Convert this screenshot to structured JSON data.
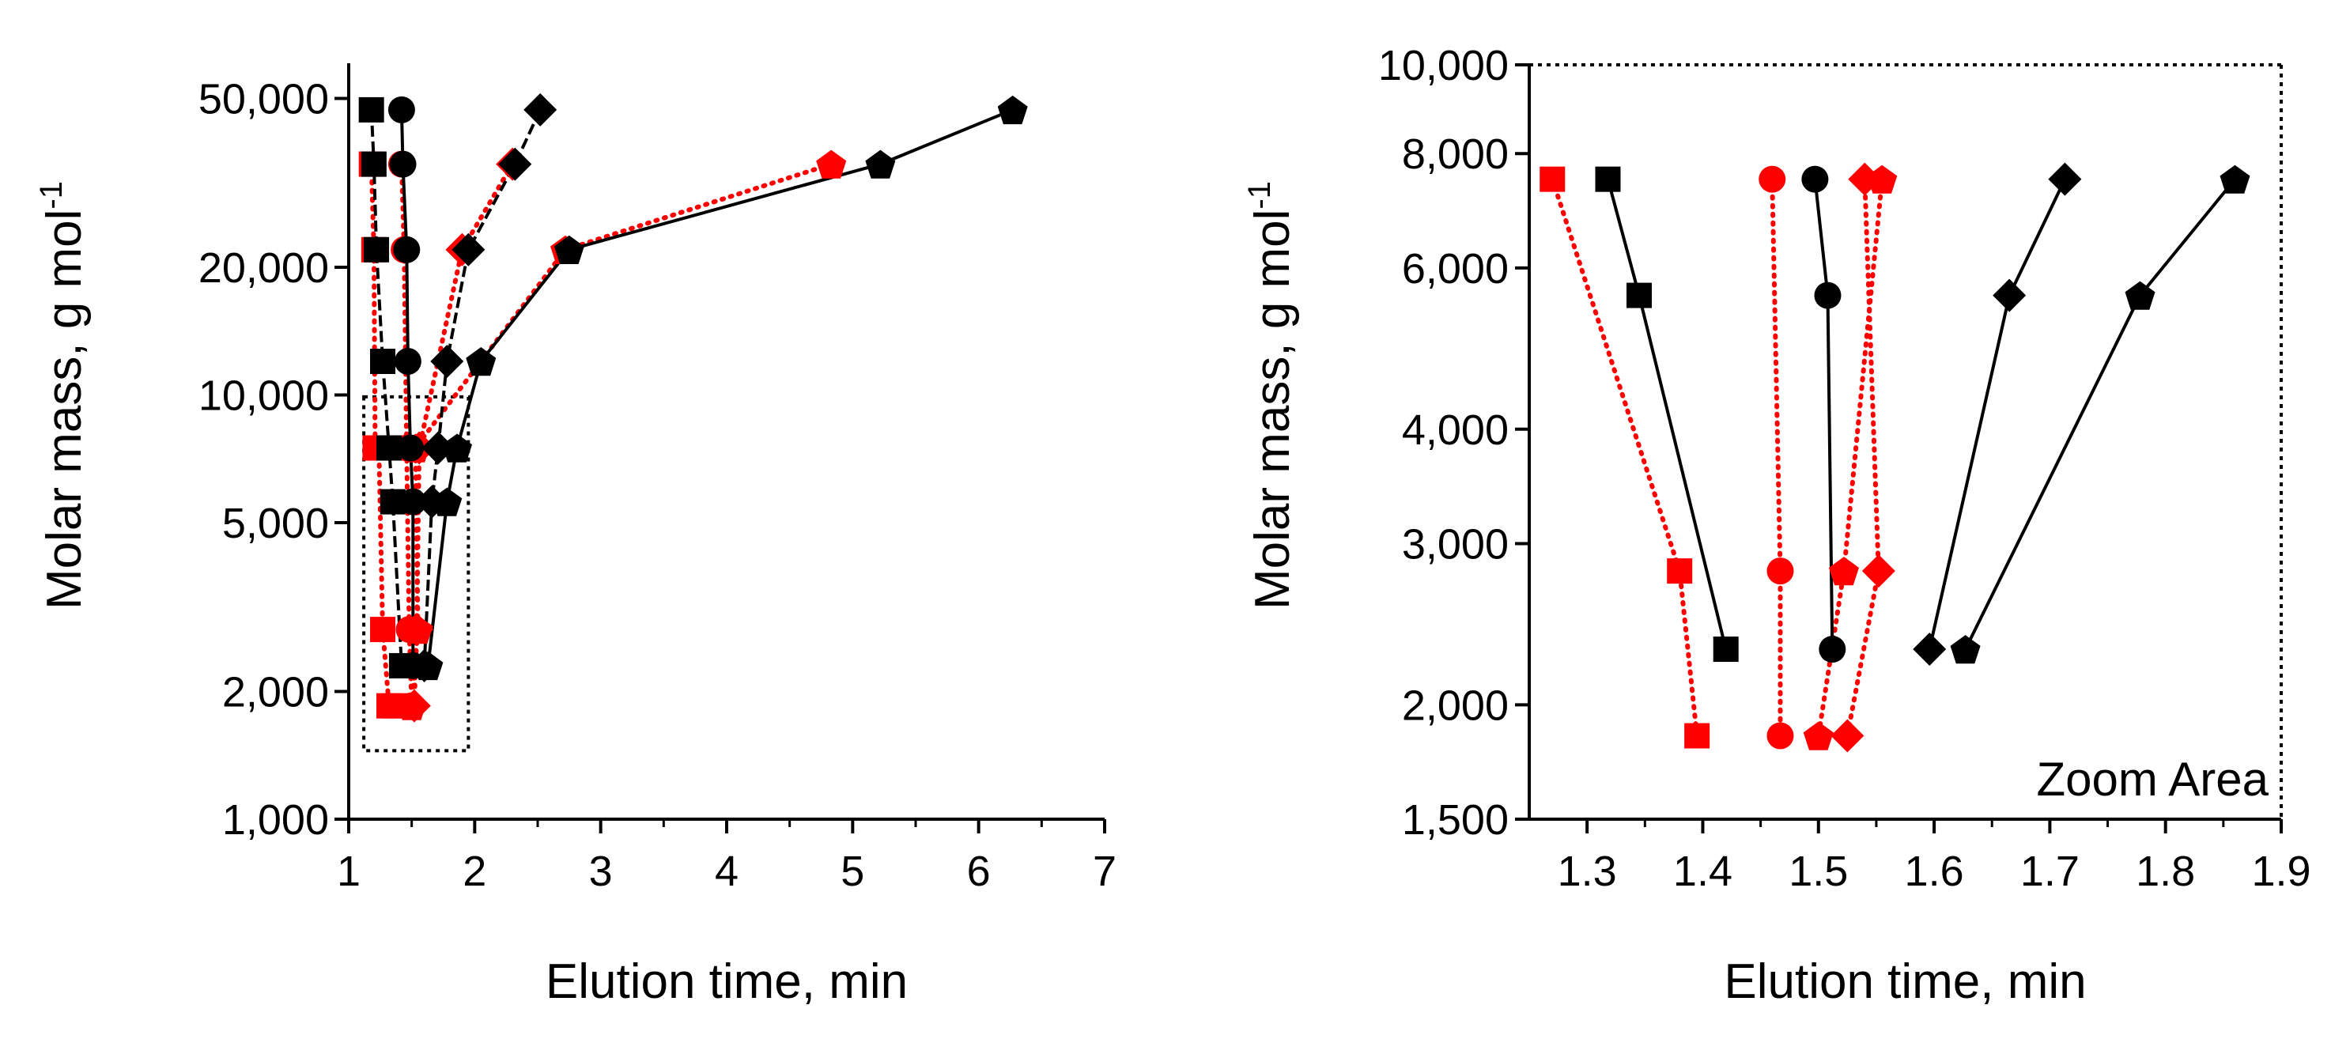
{
  "colors": {
    "black": "#000000",
    "red": "#ff0000"
  },
  "chart_data": [
    {
      "type": "line",
      "title": "",
      "xlabel": "Elution time, min",
      "ylabel_main": "Molar mass, g mol",
      "ylabel_sup": "-1",
      "xscale": "linear",
      "yscale": "log",
      "xlim": [
        1,
        7
      ],
      "ylim": [
        1000,
        60000
      ],
      "xticks": [
        1,
        2,
        3,
        4,
        5,
        6,
        7
      ],
      "xtick_labels": [
        "1",
        "2",
        "3",
        "4",
        "5",
        "6",
        "7"
      ],
      "yticks": [
        1000,
        2000,
        5000,
        10000,
        20000,
        50000
      ],
      "ytick_labels": [
        "1,000",
        "2,000",
        "5,000",
        "10,000",
        "20,000",
        "50,000"
      ],
      "zoom_box": {
        "x": [
          1.12,
          1.95
        ],
        "y": [
          1450,
          9900
        ],
        "style": "dotted"
      },
      "series": [
        {
          "name": "square-red",
          "marker": "square",
          "color": "red",
          "linestyle": "dotted",
          "x": [
            1.18,
            1.2,
            1.21,
            1.24,
            1.27,
            1.32,
            1.37
          ],
          "y": [
            35000,
            22000,
            7500,
            7500,
            2800,
            1850,
            1850
          ]
        },
        {
          "name": "circle-red",
          "marker": "circle",
          "color": "red",
          "linestyle": "dotted",
          "x": [
            1.42,
            1.44,
            1.46,
            1.48,
            1.5
          ],
          "y": [
            35000,
            22000,
            7500,
            2800,
            1850
          ]
        },
        {
          "name": "pentagon-red",
          "marker": "pentagon",
          "color": "red",
          "linestyle": "dotted",
          "x": [
            4.83,
            2.72,
            1.53,
            1.55,
            1.5
          ],
          "y": [
            35000,
            22000,
            7500,
            2800,
            1850
          ]
        },
        {
          "name": "diamond-red",
          "marker": "diamond",
          "color": "red",
          "linestyle": "dotted",
          "x": [
            2.3,
            1.9,
            1.56,
            1.54,
            1.52
          ],
          "y": [
            35000,
            22000,
            7500,
            2800,
            1850
          ]
        },
        {
          "name": "square-black",
          "marker": "square",
          "color": "black",
          "linestyle": "dashed",
          "x": [
            1.18,
            1.2,
            1.22,
            1.27,
            1.32,
            1.35,
            1.42
          ],
          "y": [
            47000,
            35000,
            22000,
            12000,
            7500,
            5600,
            2300
          ]
        },
        {
          "name": "circle-black",
          "marker": "circle",
          "color": "black",
          "linestyle": "solid",
          "x": [
            1.42,
            1.43,
            1.46,
            1.47,
            1.49,
            1.51,
            1.51
          ],
          "y": [
            47000,
            35000,
            22000,
            12000,
            7500,
            5600,
            2300
          ]
        },
        {
          "name": "diamond-black",
          "marker": "diamond",
          "color": "black",
          "linestyle": "dashed",
          "x": [
            2.52,
            2.32,
            1.95,
            1.78,
            1.71,
            1.66,
            1.6
          ],
          "y": [
            47000,
            35000,
            22000,
            12000,
            7500,
            5600,
            2300
          ]
        },
        {
          "name": "pentagon-black",
          "marker": "pentagon",
          "color": "black",
          "linestyle": "solid",
          "x": [
            6.27,
            5.22,
            2.75,
            2.05,
            1.86,
            1.78,
            1.63
          ],
          "y": [
            47000,
            35000,
            22000,
            12000,
            7500,
            5600,
            2300
          ]
        }
      ]
    },
    {
      "type": "line",
      "title": "",
      "xlabel": "Elution time, min",
      "ylabel_main": "Molar mass, g mol",
      "ylabel_sup": "-1",
      "xscale": "linear",
      "yscale": "log",
      "xlim": [
        1.25,
        1.9
      ],
      "ylim": [
        1500,
        10000
      ],
      "xticks": [
        1.3,
        1.4,
        1.5,
        1.6,
        1.7,
        1.8,
        1.9
      ],
      "xtick_labels": [
        "1.3",
        "1.4",
        "1.5",
        "1.6",
        "1.7",
        "1.8",
        "1.9"
      ],
      "yticks": [
        1500,
        2000,
        3000,
        4000,
        6000,
        8000,
        10000
      ],
      "ytick_labels": [
        "1,500",
        "2,000",
        "3,000",
        "4,000",
        "6,000",
        "8,000",
        "10,000"
      ],
      "annotation": "Zoom Area",
      "series": [
        {
          "name": "square-red",
          "marker": "square",
          "color": "red",
          "linestyle": "dotted",
          "x": [
            1.27,
            1.38,
            1.395
          ],
          "y": [
            7500,
            2800,
            1850
          ]
        },
        {
          "name": "circle-red",
          "marker": "circle",
          "color": "red",
          "linestyle": "dotted",
          "x": [
            1.46,
            1.467,
            1.467
          ],
          "y": [
            7500,
            2800,
            1850
          ]
        },
        {
          "name": "pentagon-red",
          "marker": "pentagon",
          "color": "red",
          "linestyle": "dotted",
          "x": [
            1.555,
            1.522,
            1.5
          ],
          "y": [
            7500,
            2800,
            1850
          ]
        },
        {
          "name": "diamond-red",
          "marker": "diamond",
          "color": "red",
          "linestyle": "dotted",
          "x": [
            1.54,
            1.552,
            1.525
          ],
          "y": [
            7500,
            2800,
            1850
          ]
        },
        {
          "name": "square-black",
          "marker": "square",
          "color": "black",
          "linestyle": "solid",
          "x": [
            1.318,
            1.345,
            1.42
          ],
          "y": [
            7500,
            5600,
            2300
          ]
        },
        {
          "name": "circle-black",
          "marker": "circle",
          "color": "black",
          "linestyle": "solid",
          "x": [
            1.497,
            1.508,
            1.512
          ],
          "y": [
            7500,
            5600,
            2300
          ]
        },
        {
          "name": "diamond-black",
          "marker": "diamond",
          "color": "black",
          "linestyle": "solid",
          "x": [
            1.713,
            1.665,
            1.596
          ],
          "y": [
            7500,
            5600,
            2300
          ]
        },
        {
          "name": "pentagon-black",
          "marker": "pentagon",
          "color": "black",
          "linestyle": "solid",
          "x": [
            1.86,
            1.778,
            1.627
          ],
          "y": [
            7500,
            5600,
            2300
          ]
        }
      ]
    }
  ]
}
